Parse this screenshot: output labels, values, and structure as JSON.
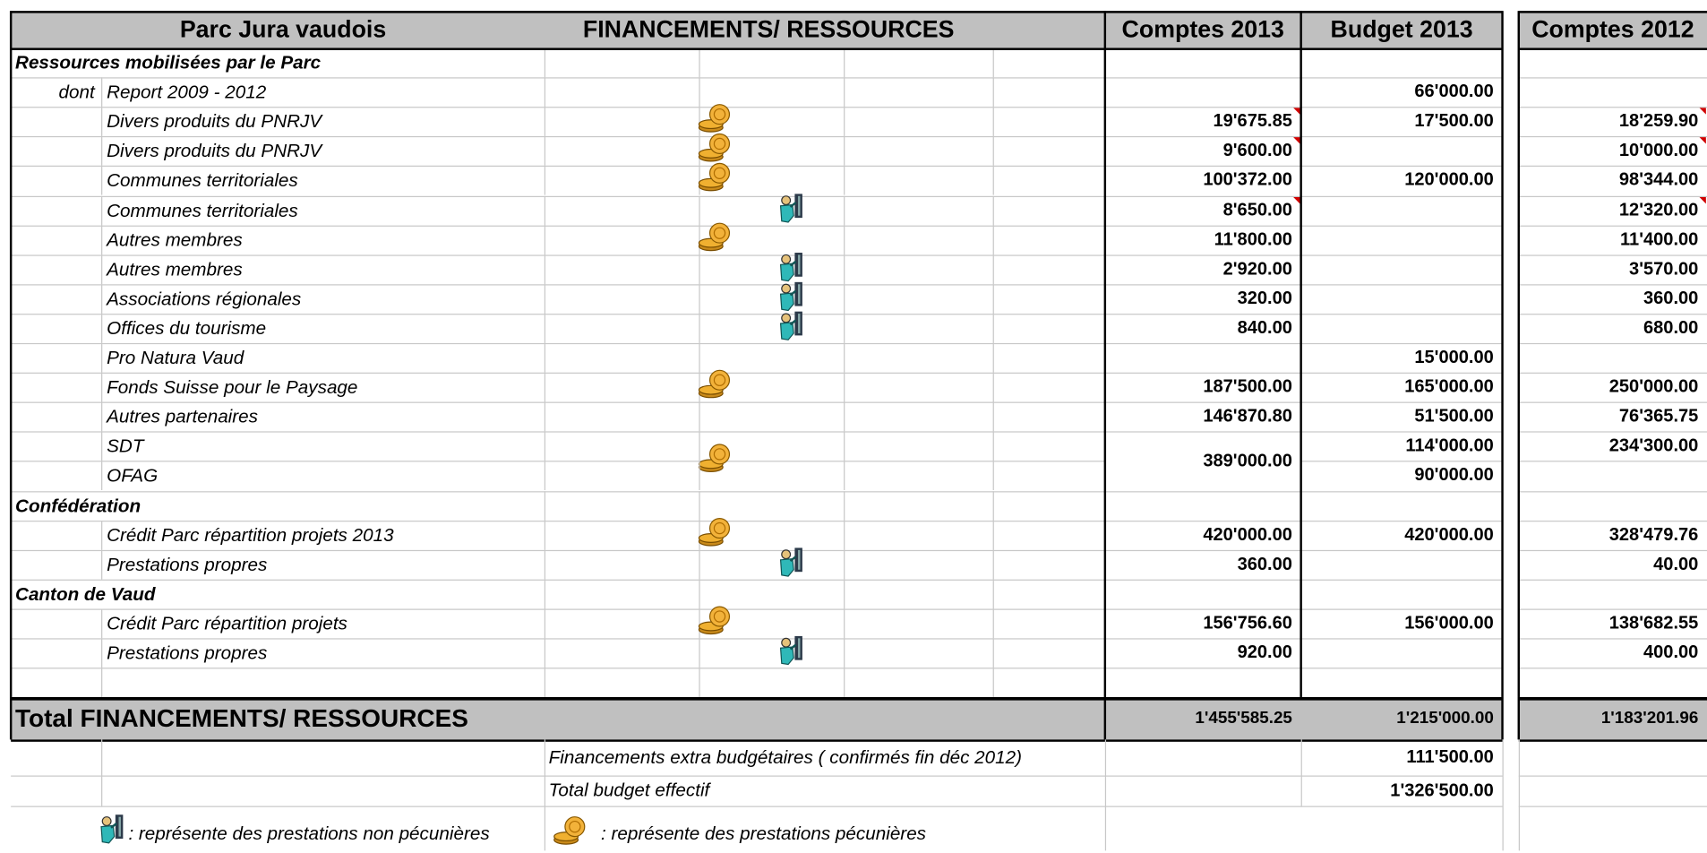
{
  "header": {
    "title": "Parc Jura vaudois",
    "section": "FINANCEMENTS/ RESSOURCES",
    "columns": [
      "Comptes 2013",
      "Budget 2013",
      "Comptes 2012"
    ]
  },
  "table": {
    "rows": [
      {
        "label": "Ressources mobilisées par le Parc",
        "level": 0
      },
      {
        "prefix": "dont",
        "label": "Report 2009 - 2012",
        "level": 1,
        "b2013": "66'000.00"
      },
      {
        "label": "Divers produits du PNRJV",
        "level": 1,
        "icon": "coin",
        "c2013": "19'675.85",
        "b2013": "17'500.00",
        "c2012": "18'259.90",
        "notes": [
          "c2013",
          "c2012"
        ]
      },
      {
        "label": "Divers produits du PNRJV",
        "level": 1,
        "icon": "coin",
        "c2013": "9'600.00",
        "c2012": "10'000.00",
        "notes": [
          "c2013",
          "c2012"
        ]
      },
      {
        "label": "Communes territoriales",
        "level": 1,
        "icon": "coin",
        "c2013": "100'372.00",
        "b2013": "120'000.00",
        "c2012": "98'344.00"
      },
      {
        "label": "Communes territoriales",
        "level": 1,
        "icon": "figure",
        "c2013": "8'650.00",
        "c2012": "12'320.00",
        "notes": [
          "c2013",
          "c2012"
        ]
      },
      {
        "label": "Autres membres",
        "level": 1,
        "icon": "coin",
        "c2013": "11'800.00",
        "c2012": "11'400.00"
      },
      {
        "label": "Autres membres",
        "level": 1,
        "icon": "figure",
        "c2013": "2'920.00",
        "c2012": "3'570.00"
      },
      {
        "label": "Associations régionales",
        "level": 1,
        "icon": "figure",
        "c2013": "320.00",
        "c2012": "360.00"
      },
      {
        "label": "Offices du tourisme",
        "level": 1,
        "icon": "figure",
        "c2013": "840.00",
        "c2012": "680.00"
      },
      {
        "label": "Pro Natura Vaud",
        "level": 1,
        "b2013": "15'000.00"
      },
      {
        "label": "Fonds Suisse pour le Paysage",
        "level": 1,
        "icon": "coin",
        "c2013": "187'500.00",
        "b2013": "165'000.00",
        "c2012": "250'000.00"
      },
      {
        "label": "Autres partenaires",
        "level": 1,
        "c2013": "146'870.80",
        "b2013": "51'500.00",
        "c2012": "76'365.75"
      },
      {
        "label": "SDT",
        "level": 1,
        "icon": "coin",
        "c2013": "389'000.00",
        "c2013_rows": 2,
        "b2013": "114'000.00",
        "c2012": "234'300.00"
      },
      {
        "label": "OFAG",
        "level": 1,
        "b2013": "90'000.00"
      },
      {
        "label": "Confédération",
        "level": 0
      },
      {
        "label": "Crédit Parc répartition projets  2013",
        "level": 1,
        "icon": "coin",
        "c2013": "420'000.00",
        "b2013": "420'000.00",
        "c2012": "328'479.76"
      },
      {
        "label": "Prestations propres",
        "level": 1,
        "icon": "figure",
        "c2013": "360.00",
        "c2012": "40.00"
      },
      {
        "label": "Canton de Vaud",
        "level": 0
      },
      {
        "label": "Crédit Parc répartition projets",
        "level": 1,
        "icon": "coin",
        "c2013": "156'756.60",
        "b2013": "156'000.00",
        "c2012": "138'682.55"
      },
      {
        "label": "Prestations propres",
        "level": 1,
        "icon": "figure",
        "c2013": "920.00",
        "c2012": "400.00"
      },
      {
        "level": 1
      }
    ]
  },
  "total": {
    "label": "Total FINANCEMENTS/ RESSOURCES",
    "c2013": "1'455'585.25",
    "b2013": "1'215'000.00",
    "c2012": "1'183'201.96"
  },
  "extra": [
    {
      "label": "Financements extra budgétaires ( confirmés fin déc 2012)",
      "b2013": "111'500.00"
    },
    {
      "label": "Total budget effectif",
      "b2013": "1'326'500.00"
    }
  ],
  "legend": {
    "figure": ": représente des prestations  non pécunières",
    "coin": ": représente des prestations pécunières"
  }
}
